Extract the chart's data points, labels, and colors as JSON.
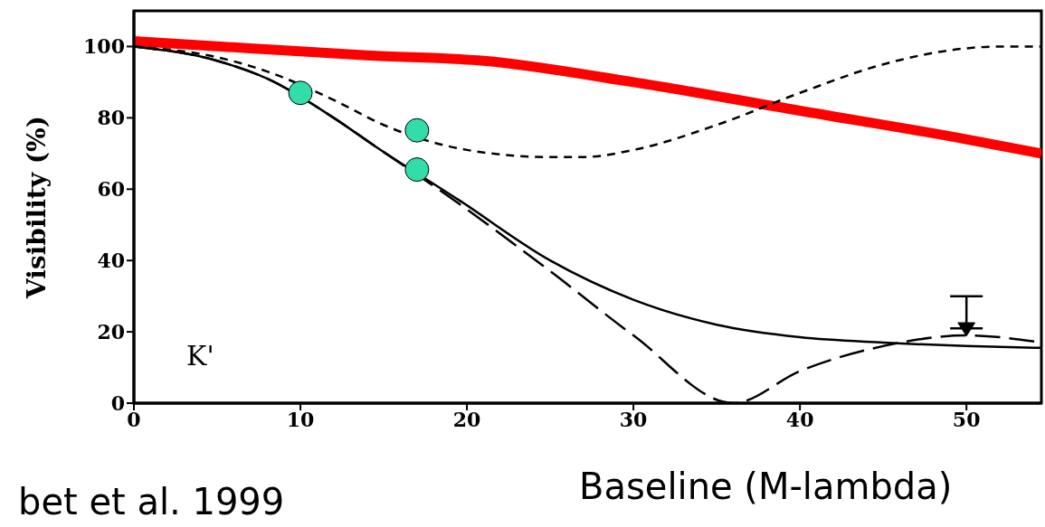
{
  "chart_data": {
    "type": "line",
    "xlabel": "Baseline (M-lambda)",
    "ylabel": "Visibility (%)",
    "annotations": [
      "K'",
      "bet et al. 1999"
    ],
    "xlim": [
      0,
      54.5
    ],
    "xticks": [
      0,
      10,
      20,
      30,
      40,
      50
    ],
    "ylim": [
      0,
      110
    ],
    "yticks": [
      0,
      20,
      40,
      60,
      80,
      100
    ],
    "grid": false,
    "series": [
      {
        "color": "#ff0000",
        "line_style": "solid",
        "x": [
          0,
          7,
          14,
          21,
          30,
          40,
          50,
          54.5
        ],
        "values": [
          101.5,
          99.5,
          97.5,
          96,
          90,
          82,
          74,
          70
        ]
      },
      {
        "color": "#000000",
        "line_style": "dotted",
        "x": [
          0,
          5,
          8,
          12,
          15,
          20,
          25,
          27,
          30,
          35,
          40,
          45,
          50,
          52,
          54.5
        ],
        "values": [
          100,
          97,
          93,
          85,
          78,
          71,
          69,
          69,
          71,
          78,
          87,
          95,
          99.5,
          100,
          100
        ]
      },
      {
        "color": "#000000",
        "line_style": "solid",
        "x": [
          0,
          5,
          8,
          12,
          14.5,
          19.5,
          25,
          30,
          35,
          40,
          45,
          50,
          54.5
        ],
        "values": [
          100,
          96,
          91,
          80,
          72,
          57,
          40,
          29,
          22,
          18.5,
          17,
          16,
          15.5
        ]
      },
      {
        "color": "#000000",
        "line_style": "dashed",
        "x": [
          0,
          5,
          8,
          12,
          14.5,
          19.5,
          25,
          30,
          36,
          40,
          45,
          50,
          54.5
        ],
        "values": [
          100,
          96,
          91,
          80,
          72,
          56,
          37,
          19,
          0,
          9,
          16,
          19,
          17
        ]
      },
      {
        "type": "scatter",
        "color": "#33ddaa",
        "marker": "circle",
        "x": [
          10,
          17,
          17
        ],
        "values": [
          87,
          76.5,
          65.5
        ]
      },
      {
        "type": "scatter",
        "color": "#000000",
        "marker": "triangle",
        "x": [
          50
        ],
        "values": [
          21
        ],
        "errors": [
          [
            21,
            30
          ]
        ]
      }
    ]
  }
}
